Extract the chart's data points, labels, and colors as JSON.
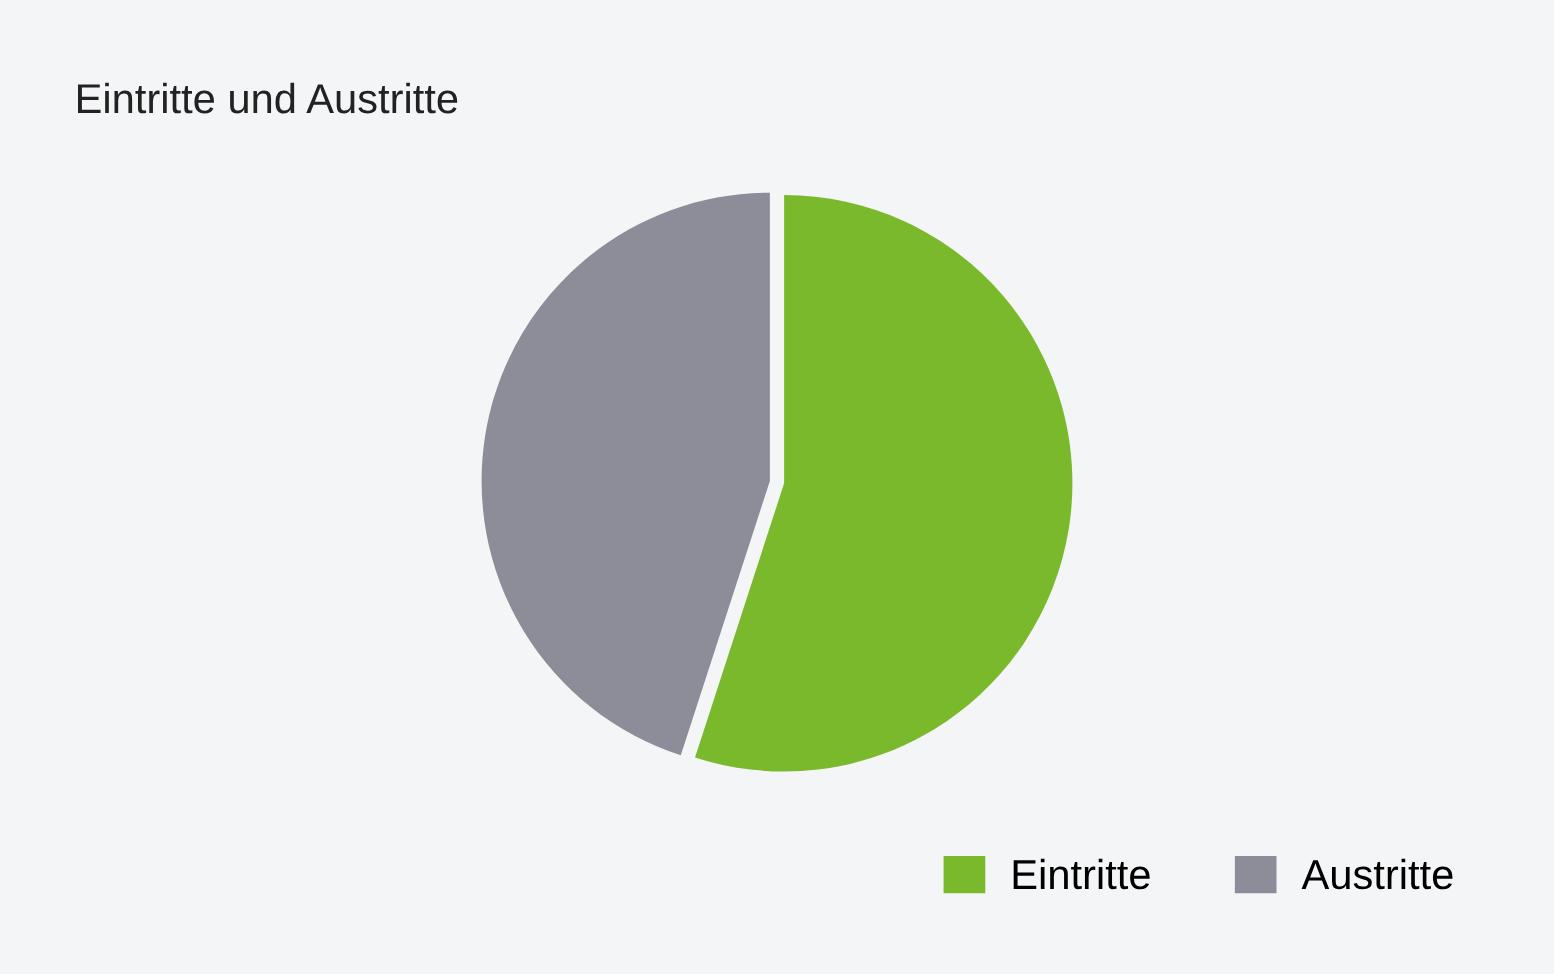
{
  "chart_data": {
    "type": "pie",
    "title": "Eintritte und Austritte",
    "categories": [
      "Eintritte",
      "Austritte"
    ],
    "values": [
      55,
      45
    ],
    "colors": [
      "#7ab92c",
      "#8c8d99"
    ],
    "legend": "bottom right"
  }
}
